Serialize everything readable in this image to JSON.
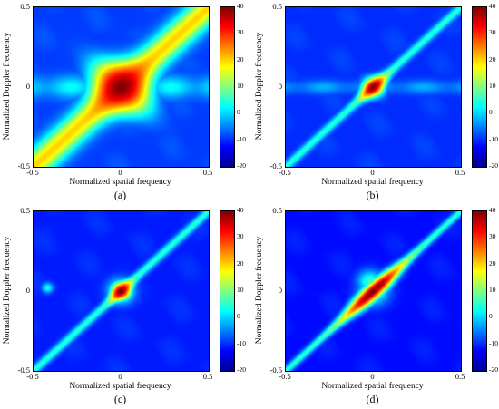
{
  "colormap": [
    "#00008f",
    "#0000ff",
    "#0080ff",
    "#00ffff",
    "#80ff80",
    "#ffff00",
    "#ff8000",
    "#ff0000",
    "#800000"
  ],
  "chart_data": [
    {
      "type": "heatmap",
      "letter": "(a)",
      "xlabel": "Normalized spatial frequency",
      "ylabel": "Normalized Doppler frequency",
      "xlim": [
        -0.5,
        0.5
      ],
      "ylim": [
        -0.5,
        0.5
      ],
      "xticks": [
        "-0.5",
        "0",
        "0.5"
      ],
      "yticks": [
        "-0.5",
        "0",
        "0.5"
      ],
      "colorbar": {
        "min": -20,
        "max": 40,
        "ticks": [
          "40",
          "30",
          "20",
          "10",
          "0",
          "-10",
          "-20"
        ]
      },
      "background_db": -9,
      "diagonal_ridge": {
        "peak_db": 40,
        "edge_db": 20,
        "width": 0.06,
        "peak_width": 0.1
      },
      "horizontal_band": {
        "y": 0.0,
        "level_db": 3,
        "width": 0.05
      },
      "hot_spots": []
    },
    {
      "type": "heatmap",
      "letter": "(b)",
      "xlabel": "Normalized spatial frequency",
      "ylabel": "Normalized Doppler frequency",
      "xlim": [
        -0.5,
        0.5
      ],
      "ylim": [
        -0.5,
        0.5
      ],
      "xticks": [
        "-0.5",
        "0",
        "0.5"
      ],
      "yticks": [
        "-0.5",
        "0",
        "0.5"
      ],
      "colorbar": {
        "min": -20,
        "max": 40,
        "ticks": [
          "40",
          "30",
          "20",
          "10",
          "0",
          "-10",
          "-20"
        ]
      },
      "background_db": -10,
      "diagonal_ridge": {
        "peak_db": 40,
        "edge_db": 5,
        "width": 0.018,
        "peak_width": 0.06
      },
      "horizontal_band": {
        "y": 0.0,
        "level_db": -2,
        "width": 0.03
      },
      "hot_spots": []
    },
    {
      "type": "heatmap",
      "letter": "(c)",
      "xlabel": "Normalized spatial frequency",
      "ylabel": "Normalized Doppler frequency",
      "xlim": [
        -0.5,
        0.5
      ],
      "ylim": [
        -0.5,
        0.5
      ],
      "xticks": [
        "-0.5",
        "0",
        "0.5"
      ],
      "yticks": [
        "-0.5",
        "0",
        "0.5"
      ],
      "colorbar": {
        "min": -20,
        "max": 40,
        "ticks": [
          "40",
          "30",
          "20",
          "10",
          "0",
          "-10",
          "-20"
        ]
      },
      "background_db": -11,
      "diagonal_ridge": {
        "peak_db": 40,
        "edge_db": 5,
        "width": 0.018,
        "peak_width": 0.05
      },
      "horizontal_band": null,
      "hot_spots": [
        {
          "x": 0.0,
          "y": 0.0,
          "db": 14,
          "r": 0.05
        },
        {
          "x": -0.42,
          "y": 0.02,
          "db": 4,
          "r": 0.022
        }
      ]
    },
    {
      "type": "heatmap",
      "letter": "(d)",
      "xlabel": "Normalized spatial frequency",
      "ylabel": "Normalized Doppler frequency",
      "xlim": [
        -0.5,
        0.5
      ],
      "ylim": [
        -0.5,
        0.5
      ],
      "xticks": [
        "-0.5",
        "0",
        "0.5"
      ],
      "yticks": [
        "-0.5",
        "0",
        "0.5"
      ],
      "colorbar": {
        "min": -20,
        "max": 40,
        "ticks": [
          "40",
          "30",
          "20",
          "10",
          "0",
          "-10",
          "-20"
        ]
      },
      "background_db": -12,
      "diagonal_ridge": {
        "peak_db": 40,
        "edge_db": 5,
        "width": 0.016,
        "peak_width": 0.16
      },
      "horizontal_band": null,
      "hot_spots": [
        {
          "x": -0.02,
          "y": 0.06,
          "db": 6,
          "r": 0.05
        },
        {
          "x": 0.0,
          "y": 0.0,
          "db": 8,
          "r": 0.06
        }
      ]
    }
  ]
}
